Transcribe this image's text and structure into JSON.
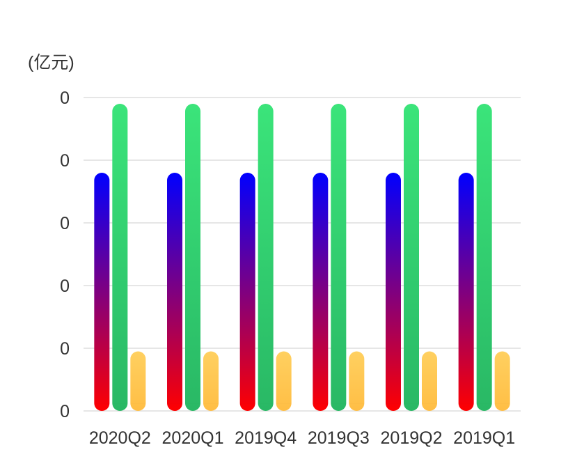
{
  "chart_data": {
    "type": "bar",
    "unit_label": "(亿元)",
    "y_tick_labels": [
      "0",
      "0",
      "0",
      "0",
      "0",
      "0"
    ],
    "categories": [
      "2020Q2",
      "2020Q1",
      "2019Q4",
      "2019Q3",
      "2019Q2",
      "2019Q1"
    ],
    "ylim": [
      0,
      5
    ],
    "grid": true,
    "legend": "none",
    "series": [
      {
        "values": [
          3.8,
          3.8,
          3.8,
          3.8,
          3.8,
          3.8
        ],
        "color_top": "#0000ff",
        "color_bottom": "#ff0000"
      },
      {
        "values": [
          4.9,
          4.9,
          4.9,
          4.9,
          4.9,
          4.9
        ],
        "color_top": "#3be47a",
        "color_bottom": "#29b865"
      },
      {
        "values": [
          0.95,
          0.95,
          0.95,
          0.95,
          0.95,
          0.95
        ],
        "color_top": "#ffd060",
        "color_bottom": "#ffbe45"
      }
    ]
  }
}
